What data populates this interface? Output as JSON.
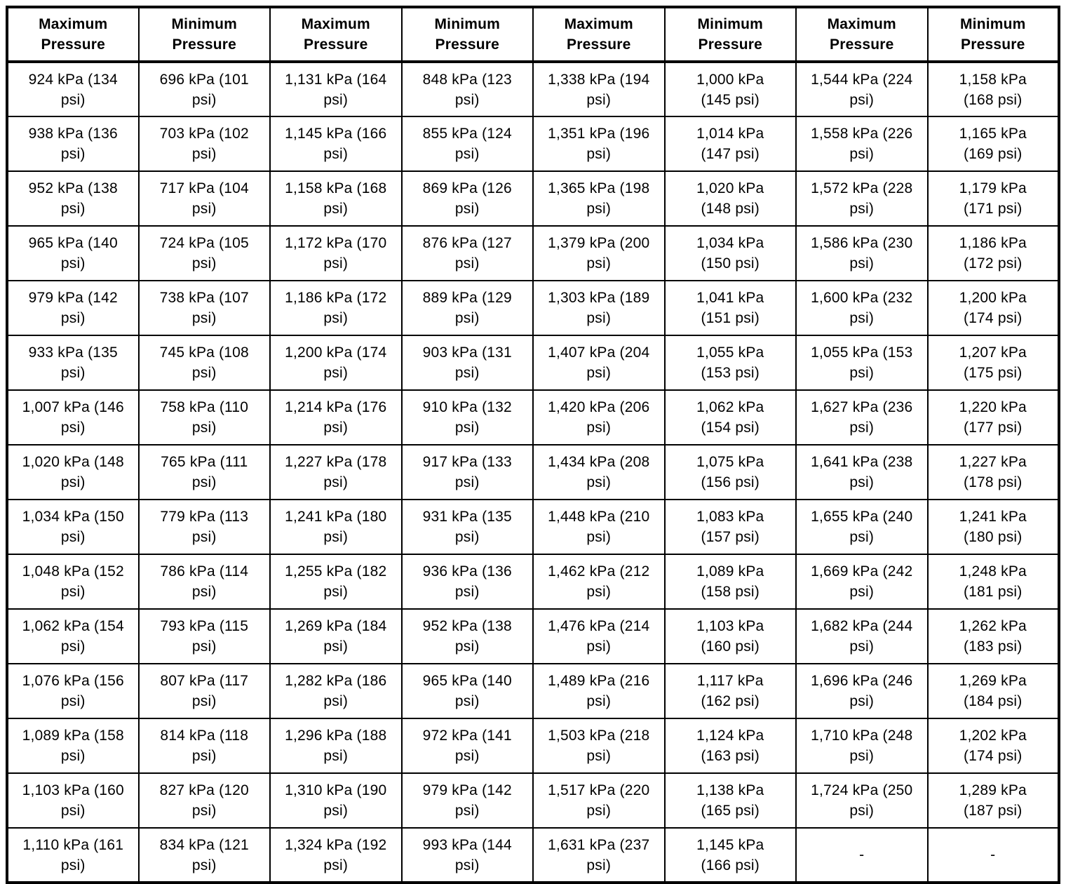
{
  "colors": {
    "background": "#ffffff",
    "border": "#000000",
    "text": "#000000"
  },
  "table": {
    "headers": [
      "Maximum\nPressure",
      "Minimum\nPressure",
      "Maximum\nPressure",
      "Minimum\nPressure",
      "Maximum\nPressure",
      "Minimum\nPressure",
      "Maximum\nPressure",
      "Minimum\nPressure"
    ],
    "rows": [
      [
        "924 kPa (134\npsi)",
        "696 kPa (101\npsi)",
        "1,131 kPa (164\npsi)",
        "848 kPa (123\npsi)",
        "1,338 kPa (194\npsi)",
        "1,000 kPa\n(145 psi)",
        "1,544 kPa (224\npsi)",
        "1,158 kPa\n(168 psi)"
      ],
      [
        "938 kPa (136\npsi)",
        "703 kPa (102\npsi)",
        "1,145 kPa (166\npsi)",
        "855 kPa (124\npsi)",
        "1,351 kPa (196\npsi)",
        "1,014 kPa\n(147 psi)",
        "1,558 kPa (226\npsi)",
        "1,165 kPa\n(169 psi)"
      ],
      [
        "952 kPa (138\npsi)",
        "717 kPa (104\npsi)",
        "1,158 kPa (168\npsi)",
        "869 kPa (126\npsi)",
        "1,365 kPa (198\npsi)",
        "1,020 kPa\n(148 psi)",
        "1,572 kPa (228\npsi)",
        "1,179 kPa\n(171 psi)"
      ],
      [
        "965 kPa (140\npsi)",
        "724 kPa (105\npsi)",
        "1,172 kPa (170\npsi)",
        "876 kPa (127\npsi)",
        "1,379 kPa (200\npsi)",
        "1,034 kPa\n(150 psi)",
        "1,586 kPa (230\npsi)",
        "1,186 kPa\n(172 psi)"
      ],
      [
        "979 kPa (142\npsi)",
        "738 kPa (107\npsi)",
        "1,186 kPa (172\npsi)",
        "889 kPa (129\npsi)",
        "1,303 kPa (189\npsi)",
        "1,041 kPa\n(151 psi)",
        "1,600 kPa (232\npsi)",
        "1,200 kPa\n(174 psi)"
      ],
      [
        "933 kPa (135\npsi)",
        "745 kPa (108\npsi)",
        "1,200 kPa (174\npsi)",
        "903 kPa (131\npsi)",
        "1,407 kPa (204\npsi)",
        "1,055 kPa\n(153 psi)",
        "1,055 kPa (153\npsi)",
        "1,207 kPa\n(175 psi)"
      ],
      [
        "1,007 kPa (146\npsi)",
        "758 kPa (110\npsi)",
        "1,214 kPa (176\npsi)",
        "910 kPa (132\npsi)",
        "1,420 kPa (206\npsi)",
        "1,062 kPa\n(154 psi)",
        "1,627 kPa (236\npsi)",
        "1,220 kPa\n(177 psi)"
      ],
      [
        "1,020 kPa (148\npsi)",
        "765 kPa (111\npsi)",
        "1,227 kPa (178\npsi)",
        "917 kPa (133\npsi)",
        "1,434 kPa (208\npsi)",
        "1,075 kPa\n(156 psi)",
        "1,641 kPa (238\npsi)",
        "1,227 kPa\n(178 psi)"
      ],
      [
        "1,034 kPa (150\npsi)",
        "779 kPa (113\npsi)",
        "1,241 kPa (180\npsi)",
        "931 kPa (135\npsi)",
        "1,448 kPa (210\npsi)",
        "1,083 kPa\n(157 psi)",
        "1,655 kPa (240\npsi)",
        "1,241 kPa\n(180 psi)"
      ],
      [
        "1,048 kPa (152\npsi)",
        "786 kPa (114\npsi)",
        "1,255 kPa (182\npsi)",
        "936 kPa (136\npsi)",
        "1,462 kPa (212\npsi)",
        "1,089 kPa\n(158 psi)",
        "1,669 kPa (242\npsi)",
        "1,248 kPa\n(181 psi)"
      ],
      [
        "1,062 kPa (154\npsi)",
        "793 kPa (115\npsi)",
        "1,269 kPa (184\npsi)",
        "952 kPa (138\npsi)",
        "1,476 kPa (214\npsi)",
        "1,103 kPa\n(160 psi)",
        "1,682 kPa (244\npsi)",
        "1,262 kPa\n(183 psi)"
      ],
      [
        "1,076 kPa (156\npsi)",
        "807 kPa (117\npsi)",
        "1,282 kPa (186\npsi)",
        "965 kPa (140\npsi)",
        "1,489 kPa (216\npsi)",
        "1,117 kPa\n(162 psi)",
        "1,696 kPa (246\npsi)",
        "1,269 kPa\n(184 psi)"
      ],
      [
        "1,089 kPa (158\npsi)",
        "814 kPa (118\npsi)",
        "1,296 kPa (188\npsi)",
        "972 kPa (141\npsi)",
        "1,503 kPa (218\npsi)",
        "1,124 kPa\n(163 psi)",
        "1,710 kPa (248\npsi)",
        "1,202 kPa\n(174 psi)"
      ],
      [
        "1,103 kPa (160\npsi)",
        "827 kPa (120\npsi)",
        "1,310 kPa (190\npsi)",
        "979 kPa (142\npsi)",
        "1,517 kPa (220\npsi)",
        "1,138 kPa\n(165 psi)",
        "1,724 kPa (250\npsi)",
        "1,289 kPa\n(187 psi)"
      ],
      [
        "1,110 kPa (161\npsi)",
        "834 kPa (121\npsi)",
        "1,324 kPa (192\npsi)",
        "993 kPa (144\npsi)",
        "1,631 kPa (237\npsi)",
        "1,145 kPa\n(166 psi)",
        "-",
        "-"
      ]
    ]
  }
}
